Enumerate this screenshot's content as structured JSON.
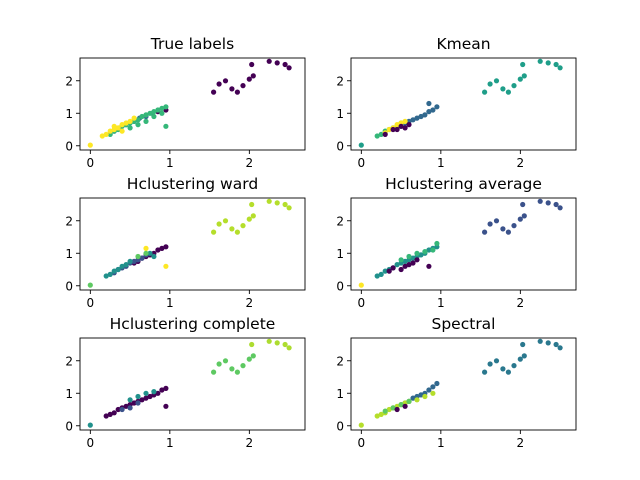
{
  "chart_data": [
    {
      "type": "scatter",
      "title": "True labels",
      "xlim": [
        -0.13,
        2.7
      ],
      "ylim": [
        -0.13,
        2.7
      ],
      "xticks": [
        0,
        1,
        2
      ],
      "yticks": [
        0,
        1,
        2
      ],
      "grid": false,
      "series": [
        {
          "color": "#440154",
          "x": [
            1.55,
            1.62,
            1.7,
            1.78,
            1.85,
            1.92,
            2.0,
            2.03,
            2.05,
            2.25,
            2.35,
            2.45,
            2.5,
            0.95,
            0.85
          ],
          "y": [
            1.65,
            1.9,
            2.0,
            1.75,
            1.65,
            1.85,
            2.05,
            2.5,
            2.15,
            2.6,
            2.55,
            2.5,
            2.4,
            1.1,
            1.05
          ]
        },
        {
          "color": "#31688e",
          "x": [
            0.3,
            0.38,
            0.45,
            0.55,
            0.62,
            0.7,
            0.78
          ],
          "y": [
            0.45,
            0.55,
            0.65,
            0.75,
            0.85,
            0.9,
            1.0
          ]
        },
        {
          "color": "#35b779",
          "x": [
            0.25,
            0.3,
            0.35,
            0.4,
            0.45,
            0.5,
            0.55,
            0.6,
            0.65,
            0.7,
            0.75,
            0.8,
            0.85,
            0.9,
            0.95,
            0.5,
            0.6,
            0.7,
            0.8,
            0.9,
            0.95
          ],
          "y": [
            0.35,
            0.45,
            0.5,
            0.6,
            0.65,
            0.7,
            0.75,
            0.8,
            0.9,
            0.95,
            1.0,
            1.05,
            1.1,
            1.15,
            1.2,
            0.55,
            0.65,
            0.75,
            0.9,
            1.0,
            0.6
          ]
        },
        {
          "color": "#fde725",
          "x": [
            0.0,
            0.15,
            0.2,
            0.25,
            0.3,
            0.35,
            0.4,
            0.45,
            0.5,
            0.55,
            0.3,
            0.4
          ],
          "y": [
            0.02,
            0.3,
            0.35,
            0.45,
            0.5,
            0.55,
            0.65,
            0.7,
            0.75,
            0.85,
            0.6,
            0.45
          ]
        }
      ]
    },
    {
      "type": "scatter",
      "title": "Kmean",
      "xlim": [
        -0.13,
        2.7
      ],
      "ylim": [
        -0.13,
        2.7
      ],
      "xticks": [
        0,
        1,
        2
      ],
      "yticks": [
        0,
        1,
        2
      ],
      "grid": false,
      "series": [
        {
          "color": "#1f9e89",
          "x": [
            1.55,
            1.62,
            1.7,
            1.78,
            1.85,
            1.92,
            2.0,
            2.03,
            2.05,
            2.25,
            2.35,
            2.45,
            2.5,
            0.0
          ],
          "y": [
            1.65,
            1.9,
            2.0,
            1.75,
            1.65,
            1.85,
            2.05,
            2.5,
            2.15,
            2.6,
            2.55,
            2.5,
            2.4,
            0.02
          ]
        },
        {
          "color": "#31688e",
          "x": [
            0.5,
            0.55,
            0.6,
            0.65,
            0.7,
            0.75,
            0.8,
            0.85,
            0.9,
            0.95,
            0.85
          ],
          "y": [
            0.6,
            0.7,
            0.75,
            0.8,
            0.85,
            0.9,
            0.95,
            1.05,
            1.1,
            1.2,
            1.3
          ]
        },
        {
          "color": "#35b779",
          "x": [
            0.2,
            0.25,
            0.3,
            0.35,
            0.4,
            0.45,
            0.5
          ],
          "y": [
            0.3,
            0.35,
            0.45,
            0.5,
            0.55,
            0.6,
            0.7
          ]
        },
        {
          "color": "#fde725",
          "x": [
            0.3,
            0.35,
            0.4,
            0.45,
            0.5,
            0.55
          ],
          "y": [
            0.4,
            0.5,
            0.55,
            0.65,
            0.7,
            0.75
          ]
        },
        {
          "color": "#440154",
          "x": [
            0.3,
            0.4,
            0.45,
            0.5,
            0.55,
            0.6
          ],
          "y": [
            0.35,
            0.5,
            0.5,
            0.6,
            0.55,
            0.65
          ]
        }
      ]
    },
    {
      "type": "scatter",
      "title": "Hclustering ward",
      "xlim": [
        -0.13,
        2.7
      ],
      "ylim": [
        -0.13,
        2.7
      ],
      "xticks": [
        0,
        1,
        2
      ],
      "yticks": [
        0,
        1,
        2
      ],
      "grid": false,
      "series": [
        {
          "color": "#b5de2b",
          "x": [
            1.55,
            1.62,
            1.7,
            1.78,
            1.85,
            1.92,
            2.0,
            2.03,
            2.05,
            2.25,
            2.35,
            2.45,
            2.5
          ],
          "y": [
            1.65,
            1.9,
            2.0,
            1.75,
            1.65,
            1.85,
            2.05,
            2.5,
            2.15,
            2.6,
            2.55,
            2.5,
            2.4
          ]
        },
        {
          "color": "#440154",
          "x": [
            0.55,
            0.6,
            0.65,
            0.7,
            0.75,
            0.8,
            0.85,
            0.9,
            0.95
          ],
          "y": [
            0.7,
            0.75,
            0.85,
            0.9,
            0.95,
            1.0,
            1.1,
            1.15,
            1.2
          ]
        },
        {
          "color": "#3b528b",
          "x": [
            0.3,
            0.35,
            0.4,
            0.45,
            0.5,
            0.55,
            0.6,
            0.65,
            0.7
          ],
          "y": [
            0.4,
            0.5,
            0.55,
            0.6,
            0.7,
            0.75,
            0.8,
            0.85,
            0.95
          ]
        },
        {
          "color": "#21918c",
          "x": [
            0.2,
            0.25,
            0.3,
            0.35,
            0.4,
            0.45,
            0.5,
            0.75,
            0.8
          ],
          "y": [
            0.3,
            0.35,
            0.45,
            0.5,
            0.6,
            0.65,
            0.75,
            1.0,
            0.9
          ]
        },
        {
          "color": "#fde725",
          "x": [
            0.7,
            0.95
          ],
          "y": [
            1.15,
            0.6
          ]
        },
        {
          "color": "#5ec962",
          "x": [
            0.0,
            0.6,
            0.7
          ],
          "y": [
            0.02,
            0.9,
            1.0
          ]
        }
      ]
    },
    {
      "type": "scatter",
      "title": "Hclustering average",
      "xlim": [
        -0.13,
        2.7
      ],
      "ylim": [
        -0.13,
        2.7
      ],
      "xticks": [
        0,
        1,
        2
      ],
      "yticks": [
        0,
        1,
        2
      ],
      "grid": false,
      "series": [
        {
          "color": "#3b528b",
          "x": [
            1.55,
            1.62,
            1.7,
            1.78,
            1.85,
            1.92,
            2.0,
            2.03,
            2.05,
            2.25,
            2.35,
            2.45,
            2.5
          ],
          "y": [
            1.65,
            1.9,
            2.0,
            1.75,
            1.65,
            1.85,
            2.05,
            2.5,
            2.15,
            2.6,
            2.55,
            2.5,
            2.4
          ]
        },
        {
          "color": "#21918c",
          "x": [
            0.2,
            0.25,
            0.3,
            0.35,
            0.4,
            0.45,
            0.5,
            0.55,
            0.6,
            0.65,
            0.7,
            0.75,
            0.8,
            0.85,
            0.9,
            0.95
          ],
          "y": [
            0.3,
            0.35,
            0.45,
            0.5,
            0.55,
            0.65,
            0.7,
            0.75,
            0.8,
            0.85,
            0.9,
            0.95,
            1.0,
            1.1,
            1.15,
            1.2
          ]
        },
        {
          "color": "#35b779",
          "x": [
            0.5,
            0.6,
            0.7,
            0.8,
            0.9,
            0.95
          ],
          "y": [
            0.8,
            0.9,
            1.0,
            1.05,
            1.1,
            1.3
          ]
        },
        {
          "color": "#440154",
          "x": [
            0.35,
            0.4,
            0.5,
            0.55,
            0.6,
            0.65,
            0.7,
            0.85
          ],
          "y": [
            0.45,
            0.55,
            0.5,
            0.6,
            0.65,
            0.7,
            0.8,
            0.6
          ]
        },
        {
          "color": "#fde725",
          "x": [
            0.0
          ],
          "y": [
            0.02
          ]
        }
      ]
    },
    {
      "type": "scatter",
      "title": "Hclustering complete",
      "xlim": [
        -0.13,
        2.7
      ],
      "ylim": [
        -0.13,
        2.7
      ],
      "xticks": [
        0,
        1,
        2
      ],
      "yticks": [
        0,
        1,
        2
      ],
      "grid": false,
      "series": [
        {
          "color": "#addc30",
          "x": [
            2.03,
            2.25,
            2.35,
            2.45,
            2.5
          ],
          "y": [
            2.5,
            2.6,
            2.55,
            2.5,
            2.4
          ]
        },
        {
          "color": "#5ec962",
          "x": [
            1.55,
            1.62,
            1.7,
            1.78,
            1.85,
            1.92,
            2.0,
            2.05
          ],
          "y": [
            1.65,
            1.9,
            2.0,
            1.75,
            1.65,
            1.85,
            2.05,
            2.15
          ]
        },
        {
          "color": "#440154",
          "x": [
            0.2,
            0.25,
            0.3,
            0.35,
            0.4,
            0.45,
            0.5,
            0.55,
            0.6,
            0.65,
            0.7,
            0.75,
            0.8,
            0.85,
            0.9,
            0.95,
            0.95
          ],
          "y": [
            0.3,
            0.35,
            0.4,
            0.5,
            0.55,
            0.6,
            0.65,
            0.7,
            0.75,
            0.8,
            0.85,
            0.9,
            0.95,
            1.0,
            1.1,
            1.15,
            0.6
          ]
        },
        {
          "color": "#21918c",
          "x": [
            0.0,
            0.5,
            0.6,
            0.7,
            0.8
          ],
          "y": [
            0.02,
            0.8,
            0.9,
            1.0,
            1.05
          ]
        },
        {
          "color": "#3b528b",
          "x": [
            0.4,
            0.5,
            0.6
          ],
          "y": [
            0.5,
            0.55,
            0.7
          ]
        }
      ]
    },
    {
      "type": "scatter",
      "title": "Spectral",
      "xlim": [
        -0.13,
        2.7
      ],
      "ylim": [
        -0.13,
        2.7
      ],
      "xticks": [
        0,
        1,
        2
      ],
      "yticks": [
        0,
        1,
        2
      ],
      "grid": false,
      "series": [
        {
          "color": "#2a788e",
          "x": [
            1.55,
            1.62,
            1.7,
            1.78,
            1.85,
            1.92,
            2.0,
            2.03,
            2.05,
            2.25,
            2.35,
            2.45,
            2.5
          ],
          "y": [
            1.65,
            1.9,
            2.0,
            1.75,
            1.65,
            1.85,
            2.05,
            2.5,
            2.15,
            2.6,
            2.55,
            2.5,
            2.4
          ]
        },
        {
          "color": "#31688e",
          "x": [
            0.55,
            0.6,
            0.65,
            0.7,
            0.75,
            0.8,
            0.85,
            0.9,
            0.95
          ],
          "y": [
            0.7,
            0.75,
            0.85,
            0.9,
            0.95,
            1.0,
            1.1,
            1.2,
            1.3
          ]
        },
        {
          "color": "#b5de2b",
          "x": [
            0.0,
            0.2,
            0.25,
            0.3,
            0.35,
            0.4,
            0.45,
            0.5,
            0.55,
            0.6,
            0.7,
            0.8,
            0.9
          ],
          "y": [
            0.02,
            0.3,
            0.35,
            0.4,
            0.5,
            0.55,
            0.6,
            0.65,
            0.7,
            0.75,
            0.8,
            0.9,
            1.0
          ]
        },
        {
          "color": "#5ec962",
          "x": [
            0.3,
            0.4,
            0.5,
            0.6
          ],
          "y": [
            0.45,
            0.55,
            0.65,
            0.75
          ]
        },
        {
          "color": "#440154",
          "x": [
            0.45,
            0.55
          ],
          "y": [
            0.5,
            0.6
          ]
        }
      ]
    }
  ]
}
